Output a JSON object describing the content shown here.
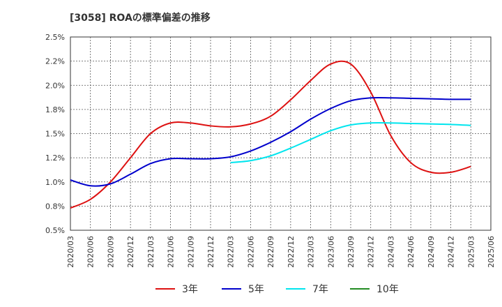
{
  "chart_data": {
    "type": "line",
    "title": "[3058]  ROAの標準偏差の推移",
    "xlabel": "",
    "ylabel": "",
    "ylim": [
      0.5,
      2.5
    ],
    "y_ticks": [
      "0.5%",
      "0.8%",
      "1.0%",
      "1.2%",
      "1.5%",
      "1.8%",
      "2.0%",
      "2.2%",
      "2.5%"
    ],
    "y_tick_values": [
      0.5,
      0.75,
      1.0,
      1.25,
      1.5,
      1.75,
      2.0,
      2.25,
      2.5
    ],
    "x_ticks": [
      "2020/03",
      "2020/06",
      "2020/09",
      "2020/12",
      "2021/03",
      "2021/06",
      "2021/09",
      "2021/12",
      "2022/03",
      "2022/06",
      "2022/09",
      "2022/12",
      "2023/03",
      "2023/06",
      "2023/09",
      "2023/12",
      "2024/03",
      "2024/06",
      "2024/09",
      "2024/12",
      "2025/03",
      "2025/06"
    ],
    "grid": true,
    "legend_position": "bottom",
    "series": [
      {
        "name": "3年",
        "color": "#dd1111",
        "x": [
          "2020/03",
          "2020/06",
          "2020/09",
          "2020/12",
          "2021/03",
          "2021/06",
          "2021/09",
          "2021/12",
          "2022/03",
          "2022/06",
          "2022/09",
          "2022/12",
          "2023/03",
          "2023/06",
          "2023/09",
          "2023/12",
          "2024/03",
          "2024/06",
          "2024/09",
          "2024/12",
          "2025/03"
        ],
        "values": [
          0.73,
          0.82,
          1.0,
          1.25,
          1.5,
          1.61,
          1.61,
          1.58,
          1.57,
          1.6,
          1.68,
          1.85,
          2.05,
          2.22,
          2.22,
          1.93,
          1.48,
          1.2,
          1.1,
          1.1,
          1.16
        ]
      },
      {
        "name": "5年",
        "color": "#0000cc",
        "x": [
          "2020/03",
          "2020/06",
          "2020/09",
          "2020/12",
          "2021/03",
          "2021/06",
          "2021/09",
          "2021/12",
          "2022/03",
          "2022/06",
          "2022/09",
          "2022/12",
          "2023/03",
          "2023/06",
          "2023/09",
          "2023/12",
          "2024/03",
          "2024/06",
          "2024/09",
          "2024/12",
          "2025/03"
        ],
        "values": [
          1.02,
          0.96,
          0.98,
          1.08,
          1.19,
          1.24,
          1.24,
          1.24,
          1.26,
          1.32,
          1.41,
          1.52,
          1.65,
          1.76,
          1.84,
          1.87,
          1.87,
          1.865,
          1.86,
          1.855,
          1.855
        ]
      },
      {
        "name": "7年",
        "color": "#00e5ee",
        "x": [
          "2022/03",
          "2022/06",
          "2022/09",
          "2022/12",
          "2023/03",
          "2023/06",
          "2023/09",
          "2023/12",
          "2024/03",
          "2024/06",
          "2024/09",
          "2024/12",
          "2025/03"
        ],
        "values": [
          1.2,
          1.22,
          1.27,
          1.35,
          1.44,
          1.53,
          1.59,
          1.61,
          1.61,
          1.605,
          1.6,
          1.595,
          1.585
        ]
      },
      {
        "name": "10年",
        "color": "#228b22",
        "x": [],
        "values": []
      }
    ]
  }
}
